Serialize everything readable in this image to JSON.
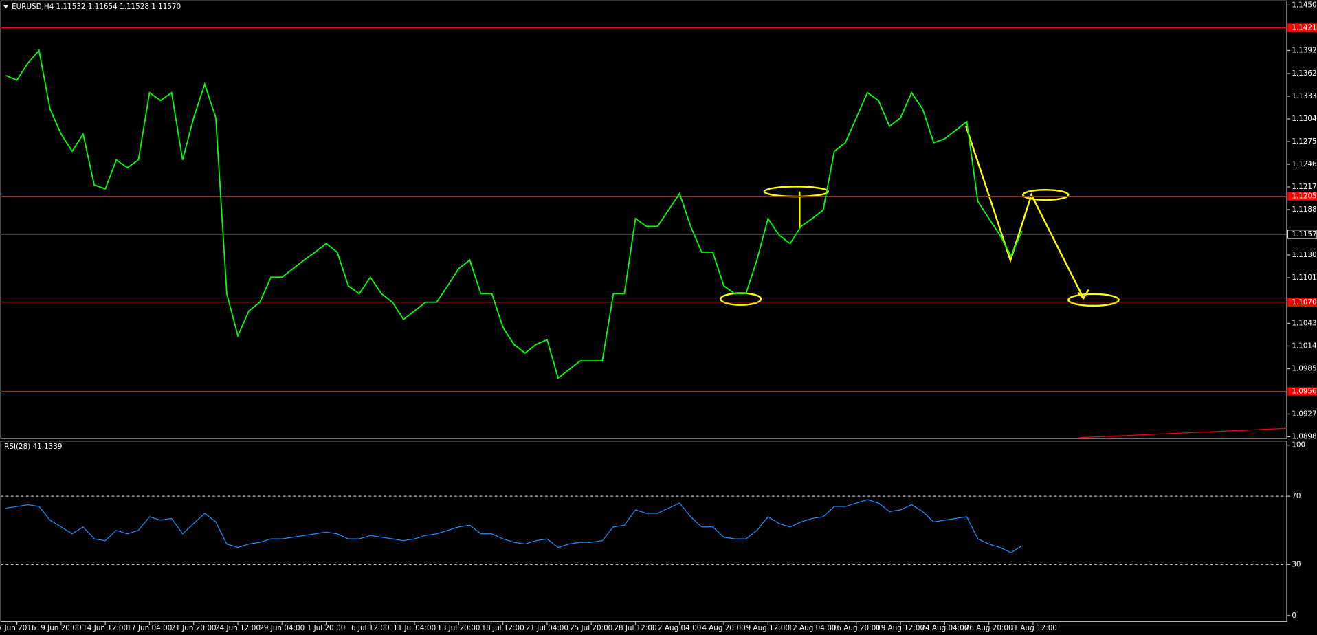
{
  "chart_data": [
    {
      "type": "line",
      "title": "EURUSD,H4  1.11532 1.11654 1.11528 1.11570",
      "color": "#00ff00",
      "categories": [
        null,
        "7 Jun 2016",
        null,
        null,
        null,
        "9 Jun 20:00",
        null,
        null,
        null,
        "14 Jun 12:00",
        null,
        null,
        null,
        "17 Jun 04:00",
        null,
        null,
        null,
        "21 Jun 20:00",
        null,
        null,
        null,
        "24 Jun 12:00",
        null,
        null,
        null,
        "29 Jun 04:00",
        null,
        null,
        null,
        "1 Jul 20:00",
        null,
        null,
        null,
        "6 Jul 12:00",
        null,
        null,
        null,
        "11 Jul 04:00",
        null,
        null,
        null,
        "13 Jul 20:00",
        null,
        null,
        null,
        "18 Jul 12:00",
        null,
        null,
        null,
        "21 Jul 04:00",
        null,
        null,
        null,
        "25 Jul 20:00",
        null,
        null,
        null,
        "28 Jul 12:00",
        null,
        null,
        null,
        "2 Aug 04:00",
        null,
        null,
        null,
        "4 Aug 20:00",
        null,
        null,
        null,
        "9 Aug 12:00",
        null,
        null,
        null,
        "12 Aug 04:00",
        null,
        null,
        null,
        "16 Aug 20:00",
        null,
        null,
        null,
        "19 Aug 12:00",
        null,
        null,
        null,
        "24 Aug 04:00",
        null,
        null,
        null,
        "26 Aug 20:00",
        null,
        null,
        null,
        "31 Aug 12:00"
      ],
      "values": [
        1.136,
        1.1354,
        1.1376,
        1.1392,
        1.1317,
        1.1285,
        1.1263,
        1.1285,
        1.122,
        1.1215,
        1.1252,
        1.1242,
        1.1252,
        1.1338,
        1.1328,
        1.1338,
        1.1252,
        1.1306,
        1.1349,
        1.1306,
        1.1081,
        1.1027,
        1.1059,
        1.107,
        1.1102,
        1.1102,
        1.1113,
        1.1124,
        1.1134,
        1.1145,
        1.1134,
        1.1091,
        1.1081,
        1.1102,
        1.1081,
        1.107,
        1.1048,
        1.1059,
        1.107,
        1.107,
        1.1091,
        1.1113,
        1.1124,
        1.1081,
        1.1081,
        1.1038,
        1.1016,
        1.1005,
        1.1016,
        1.1022,
        1.0973,
        1.0984,
        1.0995,
        1.0995,
        1.0995,
        1.1081,
        1.1081,
        1.1177,
        1.1167,
        1.1167,
        1.1188,
        1.1209,
        1.1167,
        1.1134,
        1.1134,
        1.1091,
        1.1081,
        1.1081,
        1.1124,
        1.1177,
        1.1156,
        1.1145,
        1.1167,
        1.1177,
        1.1188,
        1.1263,
        1.1274,
        1.1306,
        1.1338,
        1.1328,
        1.1295,
        1.1306,
        1.1338,
        1.1317,
        1.1274,
        1.1279,
        1.129,
        1.1301,
        1.1199,
        1.1177,
        1.1156,
        1.1129,
        1.1161,
        null
      ],
      "ylim": [
        1.0898,
        1.145
      ],
      "yticks": [
        {
          "value": 1.145,
          "label": "1.14500"
        },
        {
          "value": 1.1392,
          "label": "1.13920"
        },
        1.13625,
        1.13335,
        1.13045,
        1.12755,
        1.12465,
        1.12175,
        1.11885,
        1.11305,
        1.11015,
        {
          "value": 1.1043,
          "label": "1.10430"
        },
        {
          "value": 1.1014,
          "label": "1.10140"
        },
        {
          "value": 1.0985,
          "label": "1.09850"
        },
        {
          "value": 1.0927,
          "label": "1.09270"
        },
        {
          "value": 1.0898,
          "label": "1.08980"
        }
      ],
      "levels": [
        {
          "value": 1.1421,
          "label": "1.14210"
        },
        {
          "value": 1.12055,
          "label": "1.12055"
        },
        {
          "value": 1.107,
          "label": "1.10700"
        },
        {
          "value": 1.0956,
          "label": "1.09560"
        }
      ],
      "level_color": "#ff0000",
      "current_price": {
        "value": 1.1157,
        "label": "1.11570"
      }
    },
    {
      "type": "line",
      "title": "RSI(28) 41.1339",
      "color": "#1e90ff",
      "values": [
        63,
        64,
        65,
        64,
        56,
        52,
        48,
        52,
        45,
        44,
        50,
        48,
        50,
        58,
        56,
        57,
        48,
        54,
        60,
        55,
        42,
        40,
        42,
        43,
        45,
        45,
        46,
        47,
        48,
        49,
        48,
        45,
        45,
        47,
        46,
        45,
        44,
        45,
        47,
        48,
        50,
        52,
        53,
        48,
        48,
        45,
        43,
        42,
        44,
        45,
        40,
        42,
        43,
        43,
        44,
        52,
        53,
        62,
        60,
        60,
        63,
        66,
        58,
        52,
        52,
        46,
        45,
        45,
        50,
        58,
        54,
        52,
        55,
        57,
        58,
        64,
        64,
        66,
        68,
        66,
        61,
        62,
        65,
        61,
        55,
        56,
        57,
        58,
        45,
        42,
        40,
        37,
        41,
        null
      ],
      "ylim": [
        0,
        100
      ],
      "yticks": [
        0,
        30,
        70,
        100
      ]
    }
  ]
}
